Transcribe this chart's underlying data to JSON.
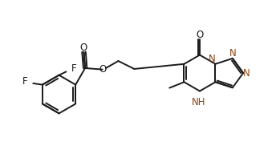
{
  "bg_color": "#ffffff",
  "line_color": "#1a1a1a",
  "N_color": "#8B4513",
  "line_width": 1.4,
  "font_size": 8.5,
  "fig_width": 3.49,
  "fig_height": 1.92,
  "dpi": 100,
  "xlim": [
    0,
    10.5
  ],
  "ylim": [
    0,
    5.5
  ]
}
